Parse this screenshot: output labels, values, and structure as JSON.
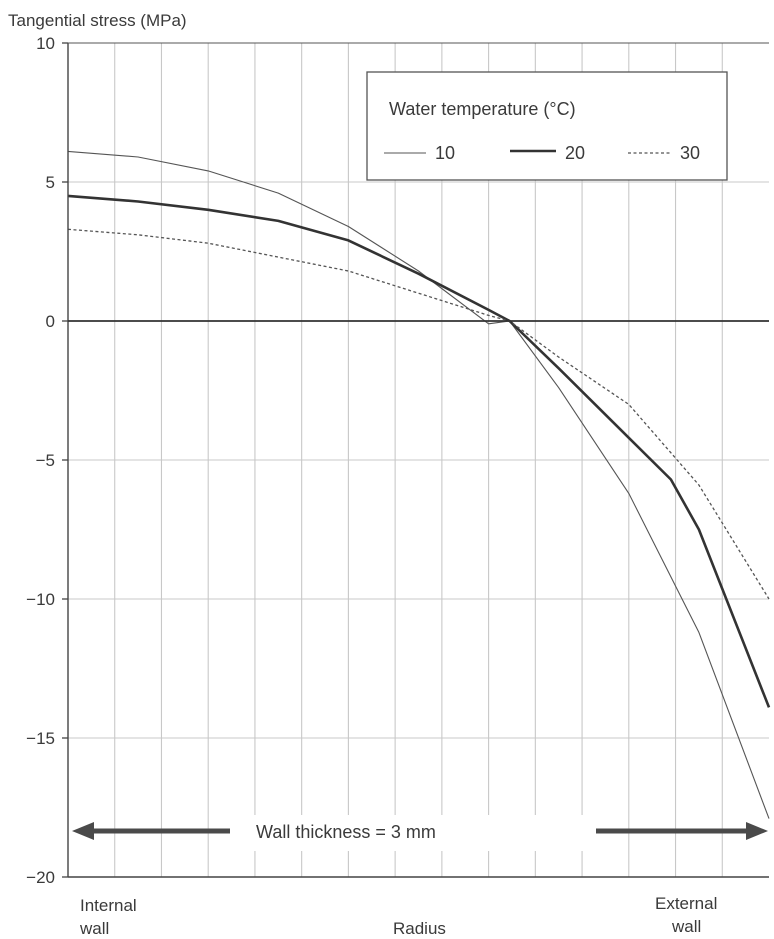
{
  "chart_data": {
    "type": "line",
    "ylabel": "Tangential stress (MPa)",
    "xlabel": "Radius",
    "x_left_label": [
      "Internal",
      "wall"
    ],
    "x_right_label": [
      "External",
      "wall"
    ],
    "ylim": [
      -20,
      10
    ],
    "yticks": [
      10,
      5,
      0,
      -5,
      -10,
      -15,
      -20
    ],
    "ytick_labels": [
      "10",
      "5",
      "0",
      "−5",
      "−10",
      "−15",
      "−20"
    ],
    "xlim": [
      0,
      1
    ],
    "grid": true,
    "legend": {
      "title": "Water temperature (°C)",
      "placement": "top-right"
    },
    "annotation": {
      "text": "Wall  thickness = 3 mm",
      "value_mm": 3
    },
    "series": [
      {
        "name": "10",
        "style": "thin",
        "x": [
          0,
          0.1,
          0.2,
          0.3,
          0.4,
          0.5,
          0.6,
          0.63,
          0.7,
          0.8,
          0.9,
          1.0
        ],
        "y": [
          6.1,
          5.9,
          5.4,
          4.6,
          3.4,
          1.8,
          -0.1,
          0,
          -2.4,
          -6.2,
          -11.2,
          -17.9
        ]
      },
      {
        "name": "20",
        "style": "thick",
        "x": [
          0,
          0.1,
          0.2,
          0.3,
          0.4,
          0.5,
          0.6,
          0.63,
          0.7,
          0.8,
          0.86,
          0.9,
          1.0
        ],
        "y": [
          4.5,
          4.3,
          4.0,
          3.6,
          2.9,
          1.7,
          0.4,
          0,
          -1.7,
          -4.2,
          -5.7,
          -7.5,
          -13.9
        ]
      },
      {
        "name": "30",
        "style": "dotted",
        "x": [
          0,
          0.1,
          0.2,
          0.3,
          0.4,
          0.5,
          0.6,
          0.63,
          0.7,
          0.8,
          0.9,
          1.0
        ],
        "y": [
          3.3,
          3.1,
          2.8,
          2.3,
          1.8,
          1.0,
          0.2,
          0,
          -1.3,
          -3.0,
          -5.9,
          -10.0
        ]
      }
    ]
  }
}
